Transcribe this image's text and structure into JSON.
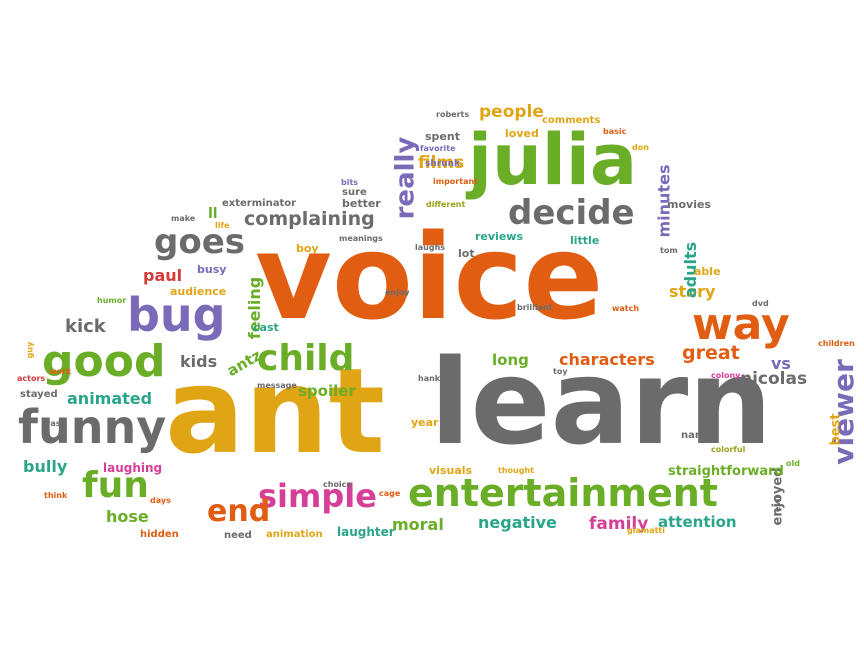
{
  "palette": {
    "orange": "#e05d12",
    "gold": "#e0a514",
    "green": "#6aae28",
    "gray": "#6b6b6b",
    "purple": "#7a6ab8",
    "teal": "#2aa58a",
    "magenta": "#d63f98",
    "red": "#d5393a",
    "brown": "#a0522d",
    "olive": "#9aa11a"
  },
  "words": [
    {
      "text": "voice",
      "color": "orange",
      "size": 8
    },
    {
      "text": "ant",
      "color": "gold",
      "size": 8
    },
    {
      "text": "learn",
      "color": "gray",
      "size": 8
    },
    {
      "text": "julia",
      "color": "green",
      "size": 6
    },
    {
      "text": "entertainment",
      "color": "green",
      "size": 5
    },
    {
      "text": "bug",
      "color": "purple",
      "size": 5
    },
    {
      "text": "funny",
      "color": "gray",
      "size": 5
    },
    {
      "text": "way",
      "color": "orange",
      "size": 5
    },
    {
      "text": "good",
      "color": "green",
      "size": 5
    },
    {
      "text": "child",
      "color": "green",
      "size": 5
    },
    {
      "text": "decide",
      "color": "gray",
      "size": 5
    },
    {
      "text": "goes",
      "color": "gray",
      "size": 5
    },
    {
      "text": "simple",
      "color": "magenta",
      "size": 4
    },
    {
      "text": "fun",
      "color": "green",
      "size": 4
    },
    {
      "text": "end",
      "color": "orange",
      "size": 4
    },
    {
      "text": "really",
      "color": "purple",
      "size": 4
    },
    {
      "text": "viewer",
      "color": "purple",
      "size": 4
    },
    {
      "text": "complaining",
      "color": "gray",
      "size": 3
    },
    {
      "text": "people",
      "color": "gold",
      "size": 3
    },
    {
      "text": "films",
      "color": "gold",
      "size": 3
    },
    {
      "text": "story",
      "color": "gold",
      "size": 3
    },
    {
      "text": "great",
      "color": "orange",
      "size": 3
    },
    {
      "text": "characters",
      "color": "orange",
      "size": 3
    },
    {
      "text": "family",
      "color": "magenta",
      "size": 3
    },
    {
      "text": "attention",
      "color": "teal",
      "size": 3
    },
    {
      "text": "negative",
      "color": "teal",
      "size": 3
    },
    {
      "text": "moral",
      "color": "green",
      "size": 3
    },
    {
      "text": "animated",
      "color": "teal",
      "size": 3
    },
    {
      "text": "kick",
      "color": "gray",
      "size": 3
    },
    {
      "text": "kids",
      "color": "gray",
      "size": 3
    },
    {
      "text": "antz",
      "color": "green",
      "size": 3
    },
    {
      "text": "spoiler",
      "color": "green",
      "size": 3
    },
    {
      "text": "feeling",
      "color": "green",
      "size": 3
    },
    {
      "text": "minutes",
      "color": "purple",
      "size": 3
    },
    {
      "text": "adults",
      "color": "teal",
      "size": 3
    },
    {
      "text": "nicolas",
      "color": "gray",
      "size": 3
    },
    {
      "text": "vs",
      "color": "purple",
      "size": 3
    },
    {
      "text": "best",
      "color": "gold",
      "size": 2
    },
    {
      "text": "hose",
      "color": "green",
      "size": 3
    },
    {
      "text": "bully",
      "color": "teal",
      "size": 3
    },
    {
      "text": "long",
      "color": "green",
      "size": 3
    },
    {
      "text": "paul",
      "color": "red",
      "size": 3
    },
    {
      "text": "enjoyed",
      "color": "gray",
      "size": 2
    },
    {
      "text": "straightforward",
      "color": "green",
      "size": 2
    },
    {
      "text": "laughing",
      "color": "magenta",
      "size": 2
    },
    {
      "text": "laughter",
      "color": "teal",
      "size": 2
    },
    {
      "text": "reviews",
      "color": "teal",
      "size": 2
    },
    {
      "text": "exterminator",
      "color": "gray",
      "size": 2
    },
    {
      "text": "audience",
      "color": "gold",
      "size": 2
    },
    {
      "text": "busy",
      "color": "purple",
      "size": 2
    },
    {
      "text": "boy",
      "color": "gold",
      "size": 2
    },
    {
      "text": "better",
      "color": "gray",
      "size": 2
    },
    {
      "text": "sure",
      "color": "gray",
      "size": 2
    },
    {
      "text": "spent",
      "color": "gray",
      "size": 2
    },
    {
      "text": "loved",
      "color": "gold",
      "size": 2
    },
    {
      "text": "comments",
      "color": "gold",
      "size": 2
    },
    {
      "text": "movies",
      "color": "gray",
      "size": 2
    },
    {
      "text": "able",
      "color": "gold",
      "size": 2
    },
    {
      "text": "little",
      "color": "teal",
      "size": 2
    },
    {
      "text": "lot",
      "color": "gray",
      "size": 2
    },
    {
      "text": "cast",
      "color": "teal",
      "size": 2
    },
    {
      "text": "stayed",
      "color": "gray",
      "size": 2
    },
    {
      "text": "names",
      "color": "gray",
      "size": 2
    },
    {
      "text": "year",
      "color": "gold",
      "size": 2
    },
    {
      "text": "visuals",
      "color": "gold",
      "size": 2
    },
    {
      "text": "need",
      "color": "gray",
      "size": 2
    },
    {
      "text": "animation",
      "color": "gold",
      "size": 2
    },
    {
      "text": "hidden",
      "color": "orange",
      "size": 2
    },
    {
      "text": "ll",
      "color": "green",
      "size": 2
    },
    {
      "text": "shrunk",
      "color": "purple",
      "size": 1
    },
    {
      "text": "different",
      "color": "olive",
      "size": 1
    },
    {
      "text": "important",
      "color": "orange",
      "size": 1
    },
    {
      "text": "favorite",
      "color": "purple",
      "size": 1
    },
    {
      "text": "roberts",
      "color": "gray",
      "size": 1
    },
    {
      "text": "basic",
      "color": "orange",
      "size": 1
    },
    {
      "text": "don",
      "color": "gold",
      "size": 1
    },
    {
      "text": "bits",
      "color": "purple",
      "size": 1
    },
    {
      "text": "meanings",
      "color": "gray",
      "size": 1
    },
    {
      "text": "laughs",
      "color": "gray",
      "size": 1
    },
    {
      "text": "make",
      "color": "gray",
      "size": 1
    },
    {
      "text": "life",
      "color": "gold",
      "size": 1
    },
    {
      "text": "humor",
      "color": "green",
      "size": 1
    },
    {
      "text": "work",
      "color": "orange",
      "size": 1
    },
    {
      "text": "guy",
      "color": "gold",
      "size": 1
    },
    {
      "text": "actors",
      "color": "red",
      "size": 1
    },
    {
      "text": "wasn",
      "color": "gray",
      "size": 1
    },
    {
      "text": "think",
      "color": "orange",
      "size": 1
    },
    {
      "text": "days",
      "color": "orange",
      "size": 1
    },
    {
      "text": "enjoy",
      "color": "gray",
      "size": 1
    },
    {
      "text": "brilliant",
      "color": "gray",
      "size": 1
    },
    {
      "text": "watch",
      "color": "orange",
      "size": 1
    },
    {
      "text": "tom",
      "color": "gray",
      "size": 1
    },
    {
      "text": "dvd",
      "color": "gray",
      "size": 1
    },
    {
      "text": "children",
      "color": "orange",
      "size": 1
    },
    {
      "text": "colony",
      "color": "magenta",
      "size": 1
    },
    {
      "text": "message",
      "color": "gray",
      "size": 1
    },
    {
      "text": "hanks",
      "color": "gray",
      "size": 1
    },
    {
      "text": "toy",
      "color": "gray",
      "size": 1
    },
    {
      "text": "choice",
      "color": "gray",
      "size": 1
    },
    {
      "text": "cage",
      "color": "orange",
      "size": 1
    },
    {
      "text": "thought",
      "color": "gold",
      "size": 1
    },
    {
      "text": "colorful",
      "color": "olive",
      "size": 1
    },
    {
      "text": "old",
      "color": "green",
      "size": 1
    },
    {
      "text": "evil",
      "color": "gray",
      "size": 1
    },
    {
      "text": "giamatti",
      "color": "gold",
      "size": 1
    }
  ]
}
